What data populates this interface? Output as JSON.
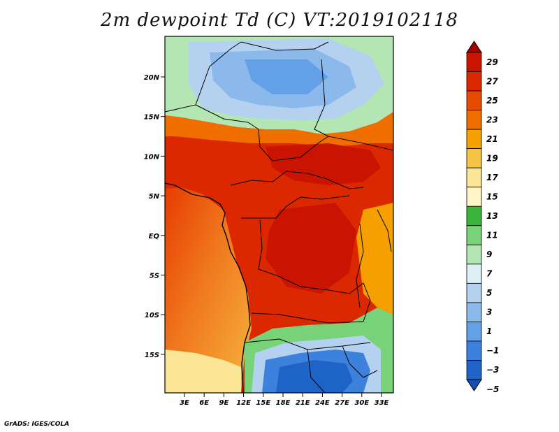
{
  "title": "2m dewpoint Td (C) VT:2019102118",
  "credit": "GrADS: IGES/COLA",
  "map": {
    "lat_labels": [
      "20N",
      "15N",
      "10N",
      "5N",
      "EQ",
      "5S",
      "10S",
      "15S"
    ],
    "lon_labels": [
      "3E",
      "6E",
      "9E",
      "12E",
      "15E",
      "18E",
      "21E",
      "24E",
      "27E",
      "30E",
      "33E"
    ]
  },
  "colorbar": {
    "labels": [
      "29",
      "27",
      "25",
      "23",
      "21",
      "19",
      "17",
      "15",
      "13",
      "11",
      "9",
      "7",
      "5",
      "3",
      "1",
      "−1",
      "−3",
      "−5"
    ],
    "colors": [
      "#a50000",
      "#c81400",
      "#dc2800",
      "#e64b00",
      "#f06e00",
      "#f5a000",
      "#f5c346",
      "#fae696",
      "#fff5c8",
      "#3cb43c",
      "#78d278",
      "#b4e6b4",
      "#dcf0f5",
      "#b4d2f0",
      "#8cb9ec",
      "#64a0e6",
      "#3c82dc",
      "#1e64c8",
      "#1450b4"
    ]
  }
}
